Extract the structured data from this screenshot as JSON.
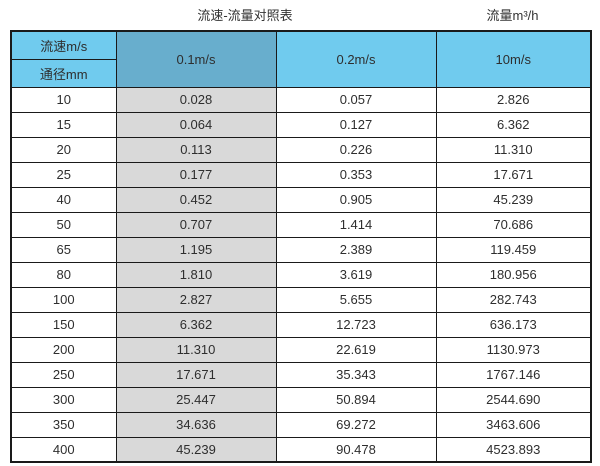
{
  "header": {
    "title": "流速-流量对照表",
    "unit_label": "流量m³/h"
  },
  "colors": {
    "header_blue": "#70cbee",
    "highlight_header_blue": "#68aecd",
    "highlight_column_gray": "#d9d9d9",
    "border": "#1a1a1a",
    "text": "#2e2e2e"
  },
  "chart_data": {
    "type": "table",
    "title": "流速-流量对照表",
    "right_label": "流量m³/h",
    "corner": {
      "top": "流速m/s",
      "bottom": "通径mm"
    },
    "velocity_columns": [
      "0.1m/s",
      "0.2m/s",
      "10m/s"
    ],
    "highlighted_column_index": 0,
    "rows": [
      {
        "dn": "10",
        "values": [
          "0.028",
          "0.057",
          "2.826"
        ]
      },
      {
        "dn": "15",
        "values": [
          "0.064",
          "0.127",
          "6.362"
        ]
      },
      {
        "dn": "20",
        "values": [
          "0.113",
          "0.226",
          "11.310"
        ]
      },
      {
        "dn": "25",
        "values": [
          "0.177",
          "0.353",
          "17.671"
        ]
      },
      {
        "dn": "40",
        "values": [
          "0.452",
          "0.905",
          "45.239"
        ]
      },
      {
        "dn": "50",
        "values": [
          "0.707",
          "1.414",
          "70.686"
        ]
      },
      {
        "dn": "65",
        "values": [
          "1.195",
          "2.389",
          "119.459"
        ]
      },
      {
        "dn": "80",
        "values": [
          "1.810",
          "3.619",
          "180.956"
        ]
      },
      {
        "dn": "100",
        "values": [
          "2.827",
          "5.655",
          "282.743"
        ]
      },
      {
        "dn": "150",
        "values": [
          "6.362",
          "12.723",
          "636.173"
        ]
      },
      {
        "dn": "200",
        "values": [
          "11.310",
          "22.619",
          "1130.973"
        ]
      },
      {
        "dn": "250",
        "values": [
          "17.671",
          "35.343",
          "1767.146"
        ]
      },
      {
        "dn": "300",
        "values": [
          "25.447",
          "50.894",
          "2544.690"
        ]
      },
      {
        "dn": "350",
        "values": [
          "34.636",
          "69.272",
          "3463.606"
        ]
      },
      {
        "dn": "400",
        "values": [
          "45.239",
          "90.478",
          "4523.893"
        ]
      }
    ]
  }
}
